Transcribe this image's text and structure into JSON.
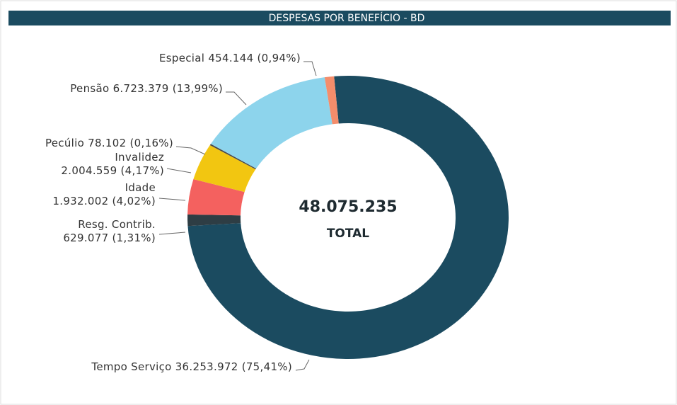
{
  "chart_data": {
    "type": "donut",
    "title": "DESPESAS POR BENEFÍCIO - BD",
    "total": 48075235,
    "total_label": "48.075.235",
    "total_caption": "TOTAL",
    "categories": [
      "Tempo Serviço",
      "Resg. Contrib.",
      "Idade",
      "Invalidez",
      "Pecúlio",
      "Pensão",
      "Especial"
    ],
    "values": [
      36253972,
      629077,
      1932002,
      2004559,
      78102,
      6723379,
      454144
    ],
    "value_labels": [
      "36.253.972",
      "629.077",
      "1.932.002",
      "2.004.559",
      "78.102",
      "6.723.379",
      "454.144"
    ],
    "percents": [
      75.41,
      1.31,
      4.02,
      4.17,
      0.16,
      13.99,
      0.94
    ],
    "percent_labels": [
      "(75,41%)",
      "(1,31%)",
      "(4,02%)",
      "(4,17%)",
      "(0,16%)",
      "(13,99%)",
      "(0,94%)"
    ],
    "colors": [
      "#1b4b60",
      "#2e3d44",
      "#f4615f",
      "#f2c611",
      "#4a4a4a",
      "#8dd4ec",
      "#f48d6b"
    ]
  }
}
